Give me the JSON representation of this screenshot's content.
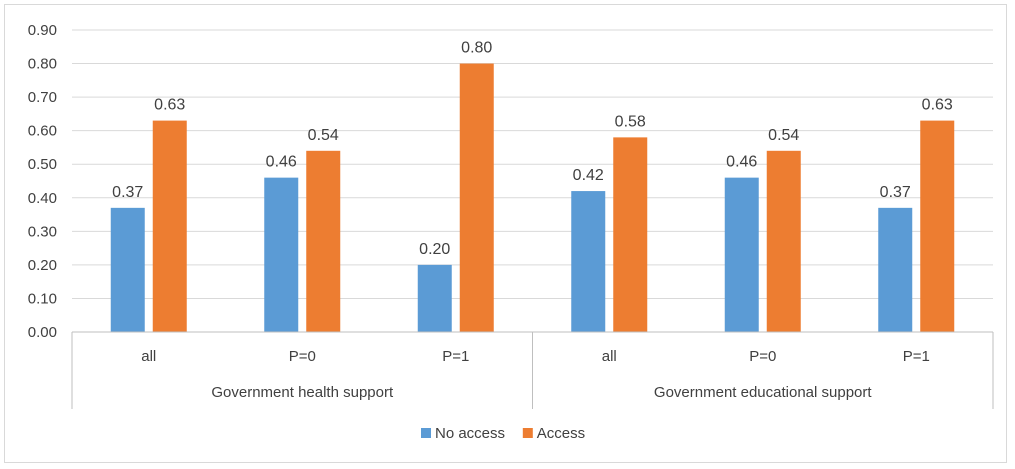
{
  "chart_data": {
    "type": "bar",
    "title": "",
    "xlabel": "",
    "ylabel": "",
    "ylim": [
      0,
      0.9
    ],
    "yticks": [
      "0.00",
      "0.10",
      "0.20",
      "0.30",
      "0.40",
      "0.50",
      "0.60",
      "0.70",
      "0.80",
      "0.90"
    ],
    "grid": true,
    "legend_position": "bottom",
    "groups": [
      {
        "label": "Government health support",
        "categories": [
          "all",
          "P=0",
          "P=1"
        ]
      },
      {
        "label": "Government educational support",
        "categories": [
          "all",
          "P=0",
          "P=1"
        ]
      }
    ],
    "categories": [
      "all",
      "P=0",
      "P=1",
      "all",
      "P=0",
      "P=1"
    ],
    "series": [
      {
        "name": "No access",
        "color": "#5b9bd5",
        "values": [
          0.37,
          0.46,
          0.2,
          0.42,
          0.46,
          0.37
        ],
        "labels": [
          "0.37",
          "0.46",
          "0.20",
          "0.42",
          "0.46",
          "0.37"
        ]
      },
      {
        "name": "Access",
        "color": "#ed7d31",
        "values": [
          0.63,
          0.54,
          0.8,
          0.58,
          0.54,
          0.63
        ],
        "labels": [
          "0.63",
          "0.54",
          "0.80",
          "0.58",
          "0.54",
          "0.63"
        ]
      }
    ]
  }
}
